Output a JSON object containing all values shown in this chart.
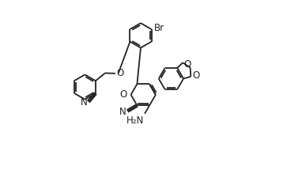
{
  "bg_color": "#ffffff",
  "line_color": "#222222",
  "lw": 1.3,
  "fs": 8.5,
  "xlim": [
    0,
    1
  ],
  "ylim": [
    0,
    1
  ],
  "figw": 3.82,
  "figh": 2.2,
  "dpi": 100
}
